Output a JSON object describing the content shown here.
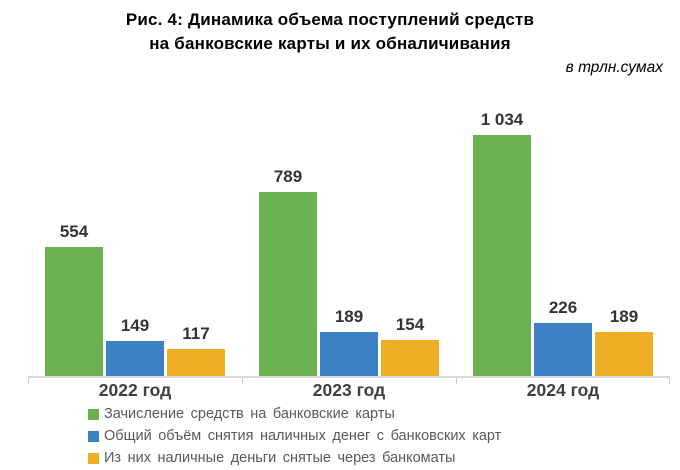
{
  "figure": {
    "title_line1": "Рис. 4: Динамика объема поступлений средств",
    "title_line2": "на банковские карты и их обналичивания",
    "units_label": "в трлн.сумах"
  },
  "chart_data": {
    "type": "bar",
    "title": "Рис. 4: Динамика объема поступлений средств на банковские карты и их обналичивания",
    "subtitle": "в трлн.сумах",
    "categories": [
      "2022 год",
      "2023 год",
      "2024 год"
    ],
    "series": [
      {
        "name": "Зачисление средств на банковские карты",
        "color": "#6cb14f",
        "values": [
          554,
          789,
          1034
        ],
        "value_labels": [
          "554",
          "789",
          "1 034"
        ]
      },
      {
        "name": "Общий объём снятия наличных денег с банковских карт",
        "color": "#3d80c4",
        "values": [
          149,
          189,
          226
        ],
        "value_labels": [
          "149",
          "189",
          "226"
        ]
      },
      {
        "name": "Из них наличные деньги снятые через банкоматы",
        "color": "#eeaf26",
        "values": [
          117,
          154,
          189
        ],
        "value_labels": [
          "117",
          "154",
          "189"
        ]
      }
    ],
    "xlabel": "",
    "ylabel": "в трлн.сумах",
    "ylim": [
      0,
      1100
    ],
    "grid": false,
    "value_labels_shown": true,
    "legend_position": "bottom-left",
    "axis_color": "#d9d9d9",
    "value_label_color": "#333333",
    "category_label_color": "#404040",
    "legend_text_color": "#595959"
  }
}
